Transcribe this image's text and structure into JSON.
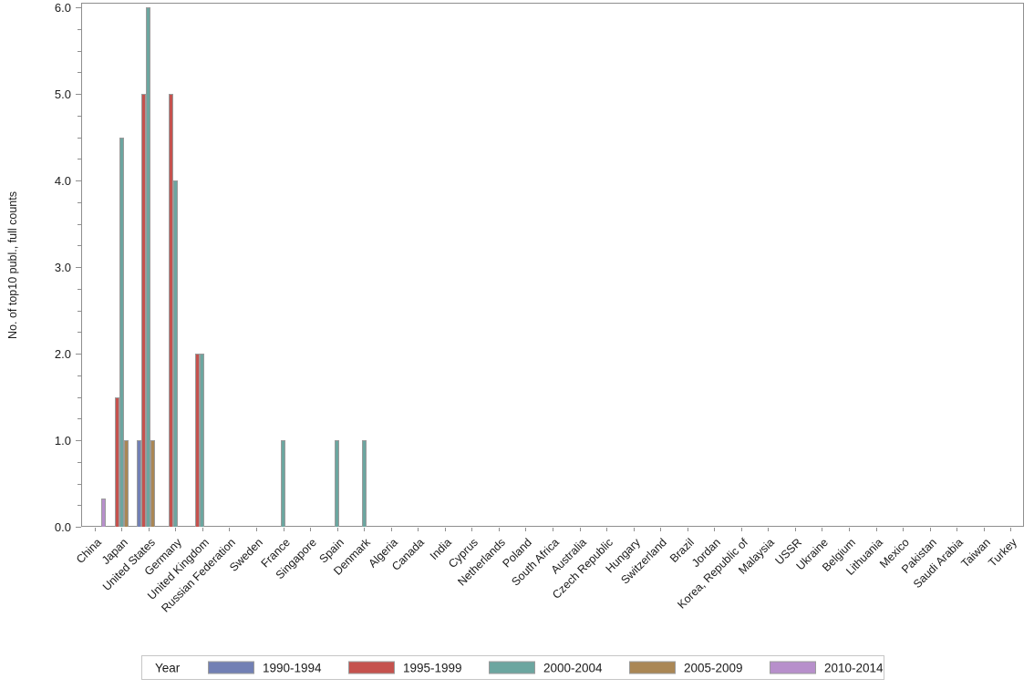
{
  "axes": {
    "y_label": "No. of top10 publ., full counts",
    "y_ticks": [
      {
        "value": 0,
        "label": "0.0"
      },
      {
        "value": 1,
        "label": "1.0"
      },
      {
        "value": 2,
        "label": "2.0"
      },
      {
        "value": 3,
        "label": "3.0"
      },
      {
        "value": 4,
        "label": "4.0"
      },
      {
        "value": 5,
        "label": "5.0"
      },
      {
        "value": 6,
        "label": "6.0"
      }
    ],
    "y_minor_step": 0.25
  },
  "legend": {
    "title": "Year",
    "items": [
      {
        "label": "1990-1994",
        "color": "#7280b4"
      },
      {
        "label": "1995-1999",
        "color": "#c5524e"
      },
      {
        "label": "2000-2004",
        "color": "#6ca6a0"
      },
      {
        "label": "2005-2009",
        "color": "#aa8755"
      },
      {
        "label": "2010-2014",
        "color": "#b78fcb"
      }
    ]
  },
  "chart_data": {
    "type": "bar",
    "title": "",
    "xlabel": "",
    "ylabel": "No. of top10 publ., full counts",
    "ylim": [
      0,
      6.05
    ],
    "grid": false,
    "legend_title": "Year",
    "legend_position": "bottom",
    "categories": [
      "China",
      "Japan",
      "United States",
      "Germany",
      "United Kingdom",
      "Russian Federation",
      "Sweden",
      "France",
      "Singapore",
      "Spain",
      "Denmark",
      "Algeria",
      "Canada",
      "India",
      "Cyprus",
      "Netherlands",
      "Poland",
      "South Africa",
      "Australia",
      "Czech Republic",
      "Hungary",
      "Switzerland",
      "Brazil",
      "Jordan",
      "Korea, Republic of",
      "Malaysia",
      "USSR",
      "Ukraine",
      "Belgium",
      "Lithuania",
      "Mexico",
      "Pakistan",
      "Saudi Arabia",
      "Taiwan",
      "Turkey"
    ],
    "series": [
      {
        "name": "1990-1994",
        "color": "#7280b4",
        "values": [
          0,
          0,
          1,
          0,
          0,
          0,
          0,
          0,
          0,
          0,
          0,
          0,
          0,
          0,
          0,
          0,
          0,
          0,
          0,
          0,
          0,
          0,
          0,
          0,
          0,
          0,
          0,
          0,
          0,
          0,
          0,
          0,
          0,
          0,
          0
        ]
      },
      {
        "name": "1995-1999",
        "color": "#c5524e",
        "values": [
          0,
          1.5,
          5,
          5,
          2,
          0,
          0,
          0,
          0,
          0,
          0,
          0,
          0,
          0,
          0,
          0,
          0,
          0,
          0,
          0,
          0,
          0,
          0,
          0,
          0,
          0,
          0,
          0,
          0,
          0,
          0,
          0,
          0,
          0,
          0
        ]
      },
      {
        "name": "2000-2004",
        "color": "#6ca6a0",
        "values": [
          0,
          4.5,
          6,
          4,
          2,
          0,
          0,
          1,
          0,
          1,
          1,
          0,
          0,
          0,
          0,
          0,
          0,
          0,
          0,
          0,
          0,
          0,
          0,
          0,
          0,
          0,
          0,
          0,
          0,
          0,
          0,
          0,
          0,
          0,
          0
        ]
      },
      {
        "name": "2005-2009",
        "color": "#aa8755",
        "values": [
          0,
          1,
          1,
          0,
          0,
          0,
          0,
          0,
          0,
          0,
          0,
          0,
          0,
          0,
          0,
          0,
          0,
          0,
          0,
          0,
          0,
          0,
          0,
          0,
          0,
          0,
          0,
          0,
          0,
          0,
          0,
          0,
          0,
          0,
          0
        ]
      },
      {
        "name": "2010-2014",
        "color": "#b78fcb",
        "values": [
          0.33,
          0,
          0,
          0,
          0,
          0,
          0,
          0,
          0,
          0,
          0,
          0,
          0,
          0,
          0,
          0,
          0,
          0,
          0,
          0,
          0,
          0,
          0,
          0,
          0,
          0,
          0,
          0,
          0,
          0,
          0,
          0,
          0,
          0,
          0
        ]
      }
    ]
  }
}
